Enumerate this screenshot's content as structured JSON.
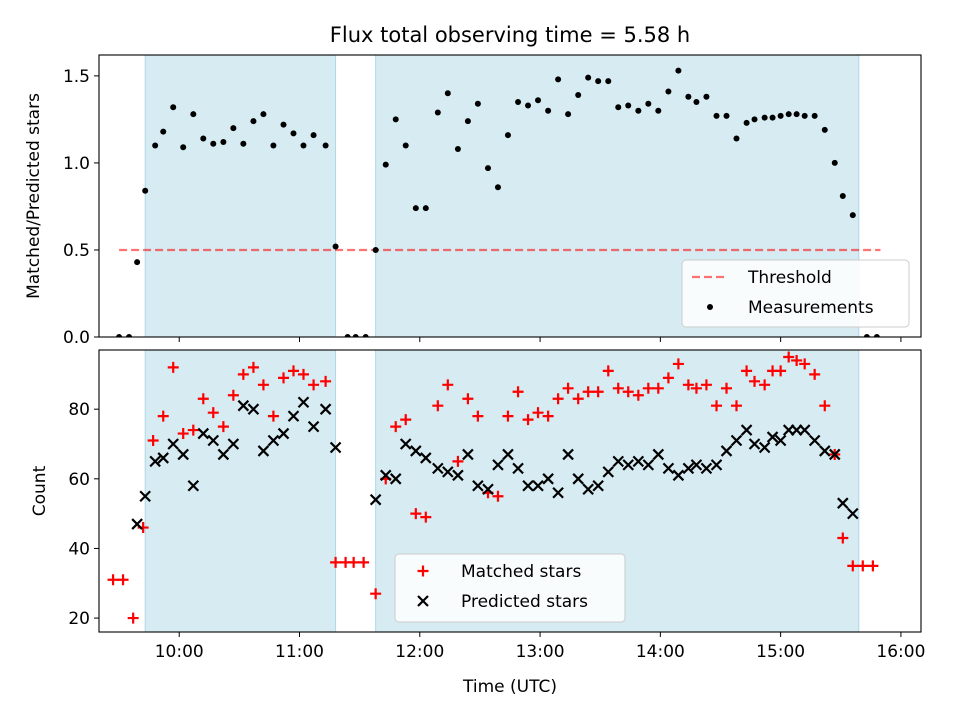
{
  "title": "Flux total observing time = 5.58 h",
  "colors": {
    "shade": "#add8e6",
    "threshold": "#ff0000",
    "measurement": "#000000",
    "matched": "#ff0000",
    "predicted": "#000000"
  },
  "chart_data": [
    {
      "type": "scatter",
      "ylabel": "Matched/Predicted stars",
      "xlim": [
        9.333,
        16.167
      ],
      "ylim": [
        0,
        1.62
      ],
      "y_ticks": [
        "0.0",
        "0.5",
        "1.0",
        "1.5"
      ],
      "shaded_intervals": [
        [
          9.717,
          11.3
        ],
        [
          11.633,
          15.65
        ]
      ],
      "threshold": {
        "name": "Threshold",
        "y": 0.5,
        "x": [
          9.5,
          15.83
        ]
      },
      "legend": {
        "placement": "lower right",
        "entries": [
          "Threshold",
          "Measurements"
        ]
      },
      "series": [
        {
          "name": "Measurements",
          "marker": "dot",
          "points": [
            [
              9.5,
              0
            ],
            [
              9.583,
              0
            ],
            [
              9.65,
              0.43
            ],
            [
              9.717,
              0.84
            ],
            [
              9.8,
              1.1
            ],
            [
              9.867,
              1.18
            ],
            [
              9.95,
              1.32
            ],
            [
              10.033,
              1.09
            ],
            [
              10.117,
              1.28
            ],
            [
              10.2,
              1.14
            ],
            [
              10.283,
              1.11
            ],
            [
              10.367,
              1.12
            ],
            [
              10.45,
              1.2
            ],
            [
              10.533,
              1.11
            ],
            [
              10.617,
              1.24
            ],
            [
              10.7,
              1.28
            ],
            [
              10.783,
              1.1
            ],
            [
              10.867,
              1.22
            ],
            [
              10.95,
              1.17
            ],
            [
              11.033,
              1.1
            ],
            [
              11.117,
              1.16
            ],
            [
              11.217,
              1.1
            ],
            [
              11.3,
              0.52
            ],
            [
              11.4,
              0
            ],
            [
              11.467,
              0
            ],
            [
              11.55,
              0
            ],
            [
              11.633,
              0.5
            ],
            [
              11.717,
              0.99
            ],
            [
              11.8,
              1.25
            ],
            [
              11.883,
              1.1
            ],
            [
              11.967,
              0.74
            ],
            [
              12.05,
              0.74
            ],
            [
              12.15,
              1.29
            ],
            [
              12.233,
              1.4
            ],
            [
              12.317,
              1.08
            ],
            [
              12.4,
              1.24
            ],
            [
              12.483,
              1.34
            ],
            [
              12.567,
              0.97
            ],
            [
              12.65,
              0.86
            ],
            [
              12.733,
              1.16
            ],
            [
              12.817,
              1.35
            ],
            [
              12.9,
              1.33
            ],
            [
              12.983,
              1.36
            ],
            [
              13.067,
              1.3
            ],
            [
              13.15,
              1.48
            ],
            [
              13.233,
              1.28
            ],
            [
              13.317,
              1.39
            ],
            [
              13.4,
              1.49
            ],
            [
              13.483,
              1.47
            ],
            [
              13.567,
              1.47
            ],
            [
              13.65,
              1.32
            ],
            [
              13.733,
              1.33
            ],
            [
              13.817,
              1.3
            ],
            [
              13.9,
              1.34
            ],
            [
              13.983,
              1.3
            ],
            [
              14.067,
              1.41
            ],
            [
              14.15,
              1.53
            ],
            [
              14.233,
              1.38
            ],
            [
              14.3,
              1.35
            ],
            [
              14.383,
              1.38
            ],
            [
              14.467,
              1.27
            ],
            [
              14.55,
              1.27
            ],
            [
              14.633,
              1.14
            ],
            [
              14.717,
              1.23
            ],
            [
              14.783,
              1.25
            ],
            [
              14.867,
              1.26
            ],
            [
              14.933,
              1.26
            ],
            [
              15,
              1.27
            ],
            [
              15.067,
              1.28
            ],
            [
              15.133,
              1.28
            ],
            [
              15.2,
              1.27
            ],
            [
              15.283,
              1.27
            ],
            [
              15.367,
              1.19
            ],
            [
              15.45,
              1.0
            ],
            [
              15.517,
              0.81
            ],
            [
              15.6,
              0.7
            ],
            [
              15.717,
              0
            ],
            [
              15.8,
              0
            ]
          ]
        }
      ]
    },
    {
      "type": "scatter",
      "xlabel": "Time (UTC)",
      "ylabel": "Count",
      "xlim": [
        9.333,
        16.167
      ],
      "ylim": [
        16,
        97
      ],
      "y_ticks": [
        "20",
        "40",
        "60",
        "80"
      ],
      "x_ticks": [
        "10:00",
        "11:00",
        "12:00",
        "13:00",
        "14:00",
        "15:00",
        "16:00"
      ],
      "shaded_intervals": [
        [
          9.717,
          11.3
        ],
        [
          11.633,
          15.65
        ]
      ],
      "legend": {
        "placement": "lower center",
        "entries": [
          "Matched stars",
          "Predicted stars"
        ]
      },
      "series": [
        {
          "name": "Matched stars",
          "marker": "plus",
          "points": [
            [
              9.45,
              31
            ],
            [
              9.533,
              31
            ],
            [
              9.617,
              20
            ],
            [
              9.7,
              46
            ],
            [
              9.783,
              71
            ],
            [
              9.867,
              78
            ],
            [
              9.95,
              92
            ],
            [
              10.033,
              73
            ],
            [
              10.117,
              74
            ],
            [
              10.2,
              83
            ],
            [
              10.283,
              79
            ],
            [
              10.367,
              75
            ],
            [
              10.45,
              84
            ],
            [
              10.533,
              90
            ],
            [
              10.617,
              92
            ],
            [
              10.7,
              87
            ],
            [
              10.783,
              78
            ],
            [
              10.867,
              89
            ],
            [
              10.95,
              91
            ],
            [
              11.033,
              90
            ],
            [
              11.117,
              87
            ],
            [
              11.217,
              88
            ],
            [
              11.3,
              36
            ],
            [
              11.383,
              36
            ],
            [
              11.45,
              36
            ],
            [
              11.533,
              36
            ],
            [
              11.633,
              27
            ],
            [
              11.717,
              60
            ],
            [
              11.8,
              75
            ],
            [
              11.883,
              77
            ],
            [
              11.967,
              50
            ],
            [
              12.05,
              49
            ],
            [
              12.15,
              81
            ],
            [
              12.233,
              87
            ],
            [
              12.317,
              65
            ],
            [
              12.4,
              83
            ],
            [
              12.483,
              78
            ],
            [
              12.567,
              56
            ],
            [
              12.65,
              55
            ],
            [
              12.733,
              78
            ],
            [
              12.817,
              85
            ],
            [
              12.9,
              77
            ],
            [
              12.983,
              79
            ],
            [
              13.067,
              78
            ],
            [
              13.15,
              83
            ],
            [
              13.233,
              86
            ],
            [
              13.317,
              83
            ],
            [
              13.4,
              85
            ],
            [
              13.483,
              85
            ],
            [
              13.567,
              91
            ],
            [
              13.65,
              86
            ],
            [
              13.733,
              85
            ],
            [
              13.817,
              84
            ],
            [
              13.9,
              86
            ],
            [
              13.983,
              86
            ],
            [
              14.067,
              89
            ],
            [
              14.15,
              93
            ],
            [
              14.233,
              87
            ],
            [
              14.3,
              86
            ],
            [
              14.383,
              87
            ],
            [
              14.467,
              81
            ],
            [
              14.55,
              86
            ],
            [
              14.633,
              81
            ],
            [
              14.717,
              91
            ],
            [
              14.783,
              88
            ],
            [
              14.867,
              87
            ],
            [
              14.933,
              91
            ],
            [
              15,
              91
            ],
            [
              15.067,
              95
            ],
            [
              15.133,
              94
            ],
            [
              15.2,
              93
            ],
            [
              15.283,
              90
            ],
            [
              15.367,
              81
            ],
            [
              15.45,
              67
            ],
            [
              15.517,
              43
            ],
            [
              15.6,
              35
            ],
            [
              15.683,
              35
            ],
            [
              15.767,
              35
            ]
          ]
        },
        {
          "name": "Predicted stars",
          "marker": "x",
          "points": [
            [
              9.65,
              47
            ],
            [
              9.717,
              55
            ],
            [
              9.8,
              65
            ],
            [
              9.867,
              66
            ],
            [
              9.95,
              70
            ],
            [
              10.033,
              67
            ],
            [
              10.117,
              58
            ],
            [
              10.2,
              73
            ],
            [
              10.283,
              71
            ],
            [
              10.367,
              67
            ],
            [
              10.45,
              70
            ],
            [
              10.533,
              81
            ],
            [
              10.617,
              80
            ],
            [
              10.7,
              68
            ],
            [
              10.783,
              71
            ],
            [
              10.867,
              73
            ],
            [
              10.95,
              78
            ],
            [
              11.033,
              82
            ],
            [
              11.117,
              75
            ],
            [
              11.217,
              80
            ],
            [
              11.3,
              69
            ],
            [
              11.633,
              54
            ],
            [
              11.717,
              61
            ],
            [
              11.8,
              60
            ],
            [
              11.883,
              70
            ],
            [
              11.967,
              68
            ],
            [
              12.05,
              66
            ],
            [
              12.15,
              63
            ],
            [
              12.233,
              62
            ],
            [
              12.317,
              61
            ],
            [
              12.4,
              67
            ],
            [
              12.483,
              58
            ],
            [
              12.567,
              57
            ],
            [
              12.65,
              64
            ],
            [
              12.733,
              67
            ],
            [
              12.817,
              63
            ],
            [
              12.9,
              58
            ],
            [
              12.983,
              58
            ],
            [
              13.067,
              60
            ],
            [
              13.15,
              56
            ],
            [
              13.233,
              67
            ],
            [
              13.317,
              60
            ],
            [
              13.4,
              57
            ],
            [
              13.483,
              58
            ],
            [
              13.567,
              62
            ],
            [
              13.65,
              65
            ],
            [
              13.733,
              64
            ],
            [
              13.817,
              65
            ],
            [
              13.9,
              64
            ],
            [
              13.983,
              67
            ],
            [
              14.067,
              63
            ],
            [
              14.15,
              61
            ],
            [
              14.233,
              63
            ],
            [
              14.3,
              64
            ],
            [
              14.383,
              63
            ],
            [
              14.467,
              64
            ],
            [
              14.55,
              68
            ],
            [
              14.633,
              71
            ],
            [
              14.717,
              74
            ],
            [
              14.783,
              70
            ],
            [
              14.867,
              69
            ],
            [
              14.933,
              72
            ],
            [
              15,
              71
            ],
            [
              15.067,
              74
            ],
            [
              15.133,
              74
            ],
            [
              15.2,
              74
            ],
            [
              15.283,
              71
            ],
            [
              15.367,
              68
            ],
            [
              15.45,
              67
            ],
            [
              15.517,
              53
            ],
            [
              15.6,
              50
            ]
          ]
        }
      ]
    }
  ]
}
